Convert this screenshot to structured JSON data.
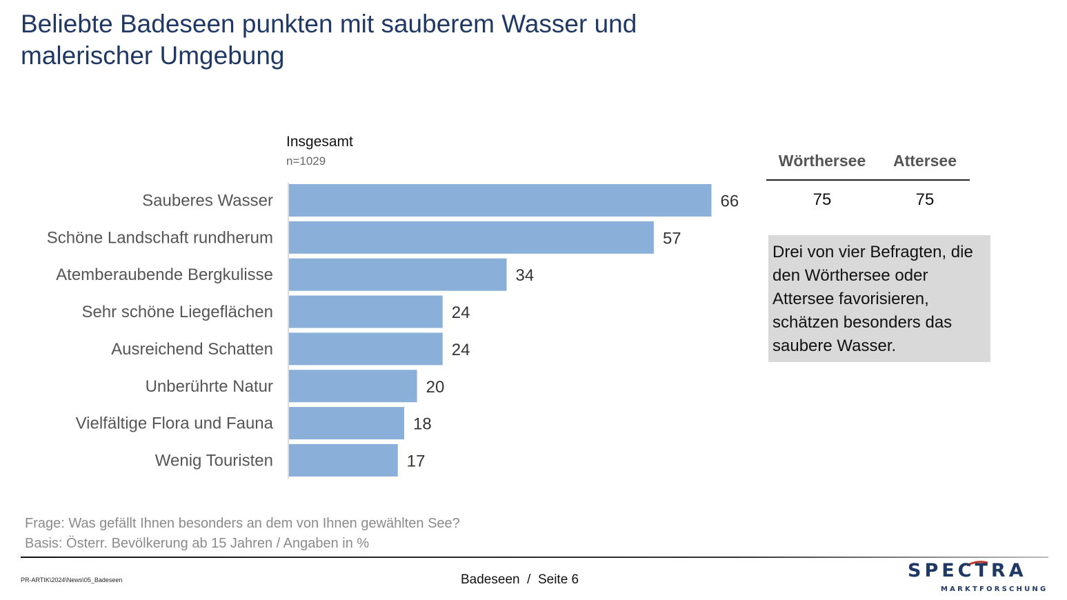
{
  "title": "Beliebte Badeseen punkten mit sauberem Wasser und malerischer Umgebung",
  "chart_header": {
    "title": "Insgesamt",
    "sample": "n=1029"
  },
  "chart_data": {
    "type": "bar",
    "orientation": "horizontal",
    "categories": [
      "Sauberes Wasser",
      "Schöne Landschaft rundherum",
      "Atemberaubende Bergkulisse",
      "Sehr schöne Liegeflächen",
      "Ausreichend Schatten",
      "Unberührte Natur",
      "Vielfältige Flora und Fauna",
      "Wenig Touristen"
    ],
    "values": [
      66,
      57,
      34,
      24,
      24,
      20,
      18,
      17
    ],
    "bar_color": "#8aafd9",
    "title": "Insgesamt",
    "xlabel": "",
    "ylabel": "",
    "xlim": [
      0,
      100
    ],
    "grid": false,
    "data_labels": true
  },
  "comparison": {
    "columns": [
      "Wörthersee",
      "Attersee"
    ],
    "values": [
      "75",
      "75"
    ]
  },
  "note": "Drei von vier Befragten, die den Wörthersee oder Attersee favorisieren, schätzen besonders das saubere Wasser.",
  "footnotes": {
    "question": "Frage: Was gefällt Ihnen besonders an dem von Ihnen gewählten See?",
    "basis": "Basis: Österr. Bevölkerung ab 15 Jahren / Angaben in %"
  },
  "footer": {
    "path": "PR-ARTIK\\2024\\News\\05_Badeseen",
    "page": "Badeseen  /  Seite 6"
  },
  "logo": {
    "name": "SPECTRA",
    "subtitle": "MARKTFORSCHUNG",
    "color": "#1f3864",
    "accent": "#c0392b"
  }
}
